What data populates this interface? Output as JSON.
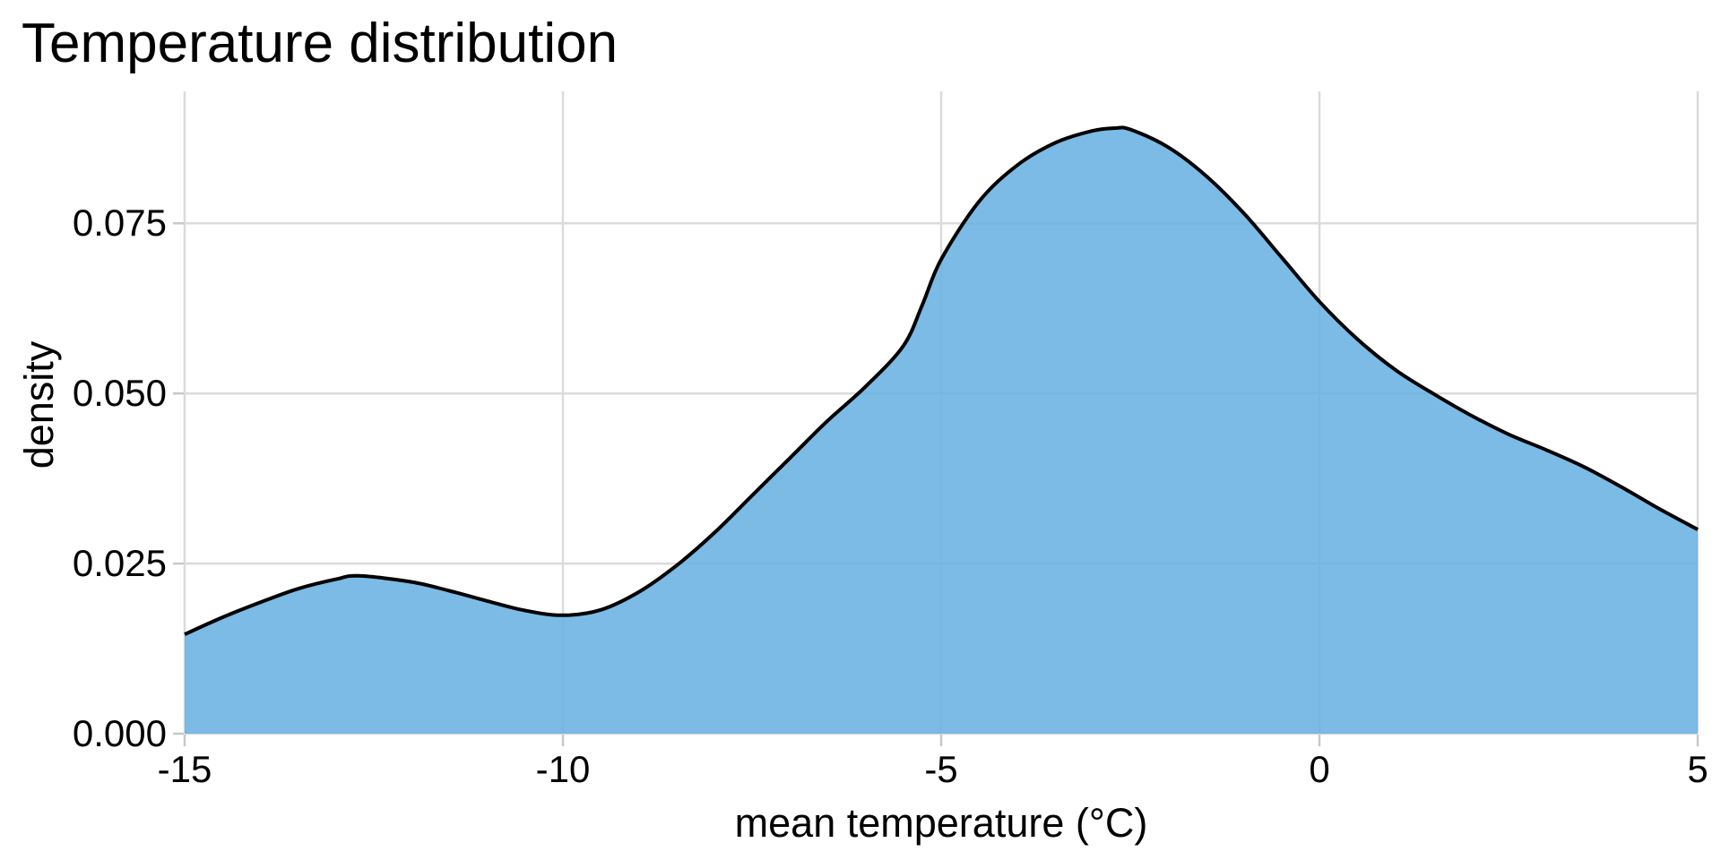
{
  "chart_data": {
    "type": "area",
    "title": "Temperature distribution",
    "xlabel": "mean temperature (°C)",
    "ylabel": "density",
    "xlim": [
      -15,
      5
    ],
    "ylim": [
      0,
      0.0944
    ],
    "x_ticks": [
      -15,
      -10,
      -5,
      0,
      5
    ],
    "x_tick_labels": [
      "-15",
      "-10",
      "-5",
      "0",
      "5"
    ],
    "y_ticks": [
      0,
      0.025,
      0.05,
      0.075
    ],
    "y_tick_labels": [
      "0.000",
      "0.025",
      "0.050",
      "0.075"
    ],
    "grid": "major-only",
    "legend": "none",
    "series": [
      {
        "name": "density",
        "points": [
          [
            -15,
            0.0146
          ],
          [
            -14.5,
            0.0171
          ],
          [
            -14,
            0.0193
          ],
          [
            -13.5,
            0.0213
          ],
          [
            -13,
            0.0227
          ],
          [
            -12.7,
            0.0232
          ],
          [
            -12,
            0.0223
          ],
          [
            -11.5,
            0.021
          ],
          [
            -11,
            0.0195
          ],
          [
            -10.5,
            0.0181
          ],
          [
            -10,
            0.0174
          ],
          [
            -9.5,
            0.0182
          ],
          [
            -9,
            0.0208
          ],
          [
            -8.5,
            0.0247
          ],
          [
            -8,
            0.0295
          ],
          [
            -7.5,
            0.035
          ],
          [
            -7,
            0.0405
          ],
          [
            -6.5,
            0.046
          ],
          [
            -6,
            0.051
          ],
          [
            -5.5,
            0.057
          ],
          [
            -5.25,
            0.063
          ],
          [
            -5,
            0.0697
          ],
          [
            -4.5,
            0.0782
          ],
          [
            -4,
            0.0835
          ],
          [
            -3.5,
            0.0868
          ],
          [
            -3,
            0.0886
          ],
          [
            -2.7,
            0.089
          ],
          [
            -2.5,
            0.0888
          ],
          [
            -2,
            0.0862
          ],
          [
            -1.5,
            0.082
          ],
          [
            -1,
            0.0765
          ],
          [
            -0.5,
            0.07
          ],
          [
            0,
            0.0635
          ],
          [
            0.5,
            0.058
          ],
          [
            1,
            0.0535
          ],
          [
            1.5,
            0.05
          ],
          [
            2,
            0.0468
          ],
          [
            2.5,
            0.044
          ],
          [
            3,
            0.0417
          ],
          [
            3.5,
            0.0392
          ],
          [
            4,
            0.0362
          ],
          [
            4.5,
            0.033
          ],
          [
            5,
            0.03
          ]
        ]
      }
    ],
    "colors": {
      "fill": "#64AFE1",
      "fill_opacity": 0.85,
      "line": "#000000",
      "grid": "#DBDBDB",
      "tick": "#C8C8C8",
      "text": "#000000",
      "background": "#FFFFFF"
    }
  }
}
